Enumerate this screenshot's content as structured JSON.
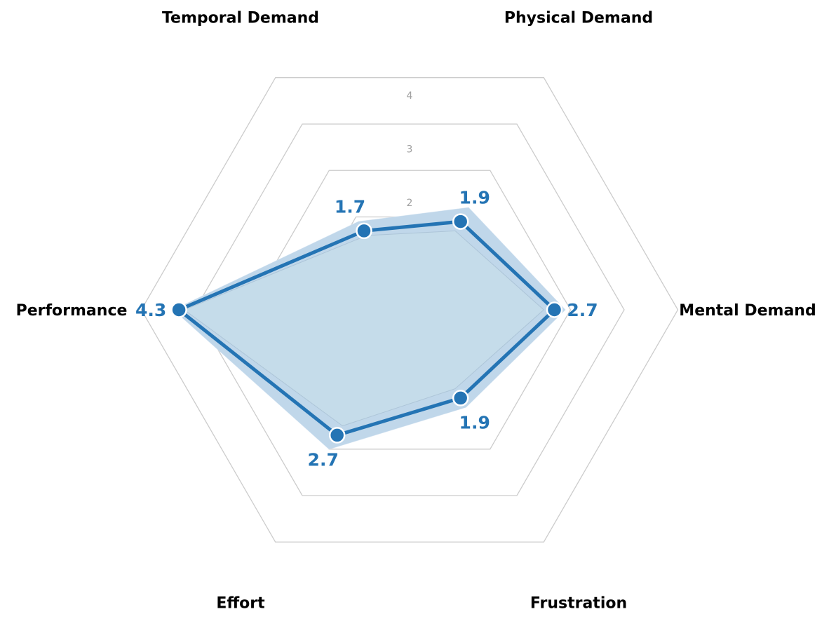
{
  "chart_data": {
    "type": "radar",
    "title": "",
    "axes": [
      "Mental Demand",
      "Physical Demand",
      "Temporal Demand",
      "Performance",
      "Effort",
      "Frustration"
    ],
    "series": [
      {
        "values": [
          2.7,
          1.9,
          1.7,
          4.3,
          2.7,
          1.9
        ],
        "band_inner": [
          2.5,
          1.7,
          1.6,
          4.2,
          2.5,
          1.7
        ],
        "band_outer": [
          2.9,
          2.2,
          1.9,
          4.4,
          3.0,
          2.1
        ]
      }
    ],
    "r_ticks": [
      2,
      3,
      4
    ],
    "r_tick_labels": [
      "2",
      "3",
      "4"
    ],
    "rlim": [
      0,
      5
    ],
    "grid": true,
    "data_labels": true,
    "colors": {
      "line": "#2474b4",
      "fill": "#c5dcea",
      "band": "#a9c9e2",
      "band_outer": "#dbe8f4",
      "grid": "#cccccc",
      "tick_text": "#a0a0a0",
      "label_text": "#000000",
      "marker_edge": "#ffffff"
    }
  }
}
